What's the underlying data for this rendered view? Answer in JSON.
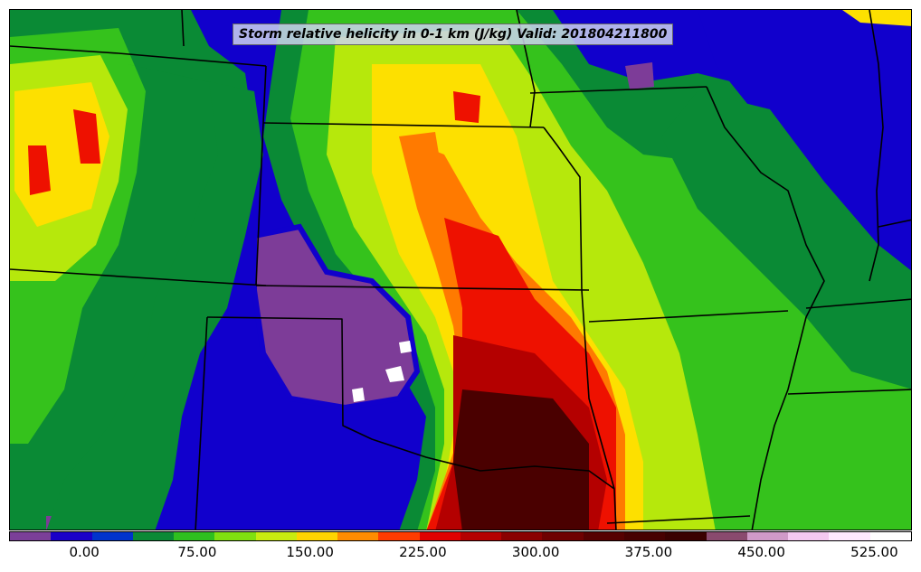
{
  "title": "Storm relative helicity in 0-1 km (J/kg) Valid: 201804211800",
  "colorbar": {
    "colors": [
      "#7b3f98",
      "#1a00c8",
      "#0033cc",
      "#0b8a36",
      "#2fbf1f",
      "#80e010",
      "#c8ec10",
      "#ffd400",
      "#ff8c00",
      "#ff3c00",
      "#e00000",
      "#b40000",
      "#8a0000",
      "#6e0000",
      "#560000",
      "#470000",
      "#3a0000",
      "#8a4a6e",
      "#d09ac8",
      "#f4c8f0",
      "#ffe8ff",
      "#ffffff"
    ],
    "ticks": [
      "0.00",
      "75.00",
      "150.00",
      "225.00",
      "300.00",
      "375.00",
      "450.00",
      "525.00"
    ],
    "tick_values": [
      0,
      75,
      150,
      225,
      300,
      375,
      450,
      525
    ],
    "min": -50,
    "max": 550
  },
  "field_palette": {
    "purple": "#7d3c98",
    "blue": "#1100cc",
    "green_dark": "#0a8a35",
    "green": "#35c21c",
    "lime": "#b6e80c",
    "yellow": "#fde000",
    "orange": "#ff7a00",
    "red": "#ee1100",
    "dark_red": "#8c0000",
    "maroon": "#4a0000",
    "border": "#000000"
  }
}
